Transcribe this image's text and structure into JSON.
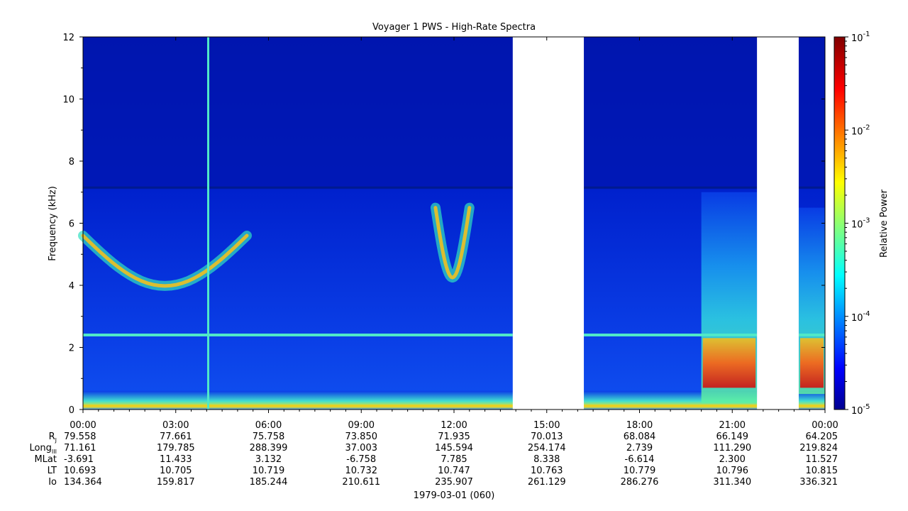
{
  "chart_data": {
    "type": "heatmap",
    "title": "Voyager 1 PWS - High-Rate Spectra",
    "ylabel": "Frequency (kHz)",
    "xlabel": "1979-03-01 (060)",
    "ylim": [
      0,
      12
    ],
    "y_ticks": [
      "0",
      "2",
      "4",
      "6",
      "8",
      "10",
      "12"
    ],
    "x_tick_values_hours": [
      0,
      3,
      6,
      9,
      12,
      15,
      18,
      21,
      24
    ],
    "x_ticks": [
      "00:00",
      "03:00",
      "06:00",
      "09:00",
      "12:00",
      "15:00",
      "18:00",
      "21:00",
      "00:00"
    ],
    "xlim_hours": [
      0,
      24
    ],
    "colorbar": {
      "label": "Relative Power",
      "scale": "log",
      "range": [
        1e-05,
        0.1
      ],
      "ticks": [
        {
          "value": 0.1,
          "base": "10",
          "exp": "-1"
        },
        {
          "value": 0.01,
          "base": "10",
          "exp": "-2"
        },
        {
          "value": 0.001,
          "base": "10",
          "exp": "-3"
        },
        {
          "value": 0.0001,
          "base": "10",
          "exp": "-4"
        },
        {
          "value": 1e-05,
          "base": "10",
          "exp": "-5"
        }
      ],
      "colormap": "jet"
    },
    "data_gaps_hours": [
      [
        13.9,
        16.2
      ],
      [
        21.8,
        23.15
      ]
    ],
    "features": [
      {
        "kind": "narrowband line",
        "freq_khz": 2.4,
        "spans_hours": [
          [
            0,
            13.9
          ],
          [
            16.2,
            21.8
          ],
          [
            23.15,
            24
          ]
        ]
      },
      {
        "kind": "vertical line",
        "hour": 4.05
      },
      {
        "kind": "emission band",
        "hours": [
          0.0,
          5.3
        ],
        "freq_khz": [
          3.8,
          5.6
        ]
      },
      {
        "kind": "emission band",
        "hours": [
          11.4,
          12.5
        ],
        "freq_khz": [
          4.0,
          6.5
        ]
      },
      {
        "kind": "broadband enhancement",
        "hours": [
          20.0,
          21.8
        ],
        "freq_khz": [
          0.2,
          7.0
        ]
      },
      {
        "kind": "broadband enhancement",
        "hours": [
          23.15,
          24
        ],
        "freq_khz": [
          0.5,
          6.5
        ]
      }
    ],
    "ephemeris": {
      "rows": [
        {
          "label": "R",
          "sub": "J",
          "values": [
            "79.558",
            "77.661",
            "75.758",
            "73.850",
            "71.935",
            "70.013",
            "68.084",
            "66.149",
            "64.205"
          ]
        },
        {
          "label": "Long",
          "sub": "III",
          "values": [
            "71.161",
            "179.785",
            "288.399",
            "37.003",
            "145.594",
            "254.174",
            "2.739",
            "111.290",
            "219.824"
          ]
        },
        {
          "label": "MLat",
          "sub": "",
          "values": [
            "-3.691",
            "11.433",
            "3.132",
            "-6.758",
            "7.785",
            "8.338",
            "-6.614",
            "2.300",
            "11.527"
          ]
        },
        {
          "label": "LT",
          "sub": "",
          "values": [
            "10.693",
            "10.705",
            "10.719",
            "10.732",
            "10.747",
            "10.763",
            "10.779",
            "10.796",
            "10.815"
          ]
        },
        {
          "label": "Io",
          "sub": "",
          "values": [
            "134.364",
            "159.817",
            "185.244",
            "210.611",
            "235.907",
            "261.129",
            "286.276",
            "311.340",
            "336.321"
          ]
        }
      ]
    }
  }
}
